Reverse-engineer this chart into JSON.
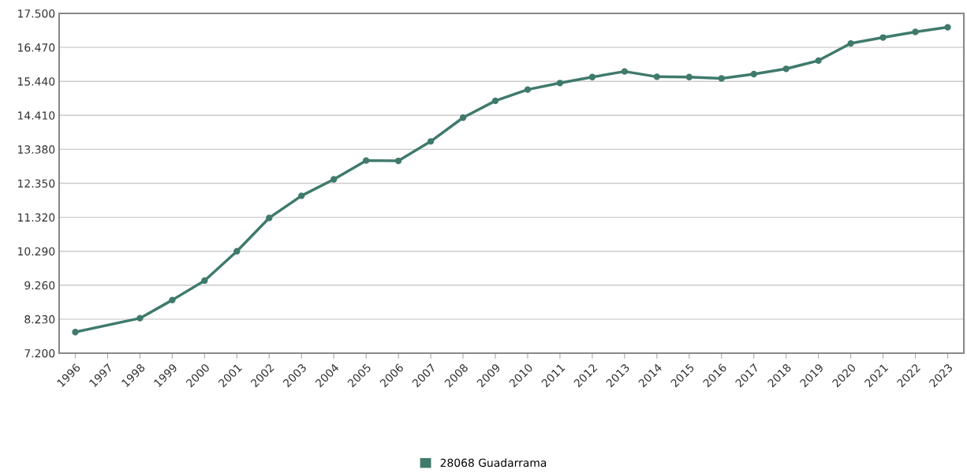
{
  "chart_data": {
    "type": "line",
    "categories": [
      "1996",
      "1997",
      "1998",
      "1999",
      "2000",
      "2001",
      "2002",
      "2003",
      "2004",
      "2005",
      "2006",
      "2007",
      "2008",
      "2009",
      "2010",
      "2011",
      "2012",
      "2013",
      "2014",
      "2015",
      "2016",
      "2017",
      "2018",
      "2019",
      "2020",
      "2021",
      "2022",
      "2023"
    ],
    "series": [
      {
        "name": "28068 Guadarrama",
        "color": "#3f7a6c",
        "values": [
          7840,
          null,
          8260,
          8810,
          9400,
          10290,
          11300,
          11970,
          12470,
          13040,
          13030,
          13620,
          14340,
          14850,
          15190,
          15390,
          15570,
          15740,
          15580,
          15570,
          15530,
          15660,
          15820,
          16070,
          16590,
          16770,
          16940,
          17080
        ]
      }
    ],
    "ylim": [
      7200,
      17500
    ],
    "yticks": [
      {
        "value": 7200,
        "label": "7.200"
      },
      {
        "value": 8230,
        "label": "8.230"
      },
      {
        "value": 9260,
        "label": "9.260"
      },
      {
        "value": 10290,
        "label": "10.290"
      },
      {
        "value": 11320,
        "label": "11.320"
      },
      {
        "value": 12350,
        "label": "12.350"
      },
      {
        "value": 13380,
        "label": "13.380"
      },
      {
        "value": 14410,
        "label": "14.410"
      },
      {
        "value": 15440,
        "label": "15.440"
      },
      {
        "value": 16470,
        "label": "16.470"
      },
      {
        "value": 17500,
        "label": "17.500"
      }
    ],
    "grid": "y",
    "legend": "bottom",
    "marker": "circle",
    "line_style": "solid"
  }
}
